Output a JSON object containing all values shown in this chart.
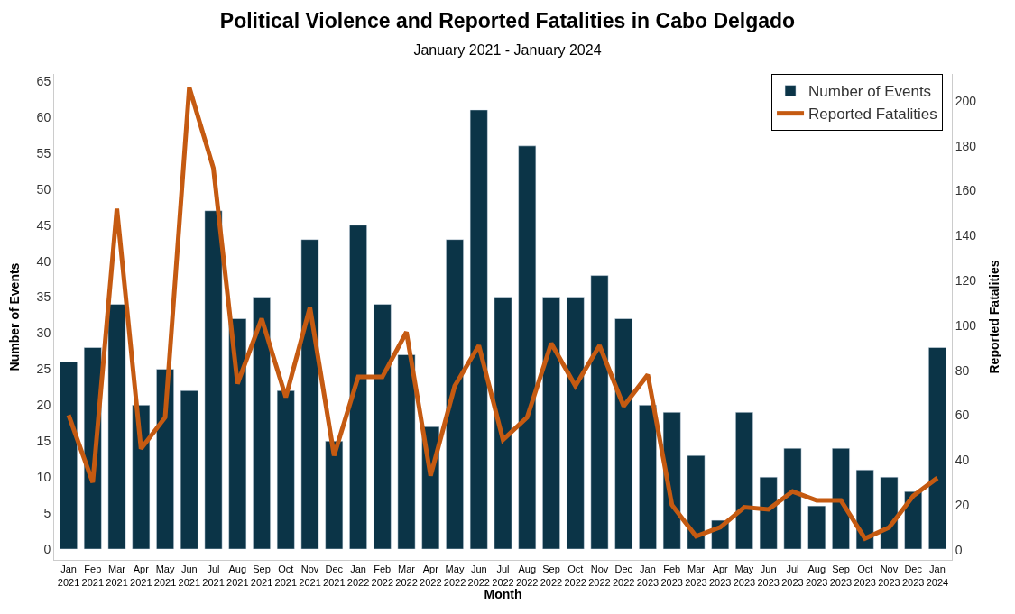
{
  "chart_data": {
    "type": "bar",
    "title": "Political Violence and Reported Fatalities in Cabo Delgado",
    "subtitle": "January 2021 - January 2024",
    "xlabel": "Month",
    "ylabel": "Number of Events",
    "y2label": "Reported Fatalities",
    "categories": [
      "Jan 2021",
      "Feb 2021",
      "Mar 2021",
      "Apr 2021",
      "May 2021",
      "Jun 2021",
      "Jul 2021",
      "Aug 2021",
      "Sep 2021",
      "Oct 2021",
      "Nov 2021",
      "Dec 2021",
      "Jan 2022",
      "Feb 2022",
      "Mar 2022",
      "Apr 2022",
      "May 2022",
      "Jun 2022",
      "Jul 2022",
      "Aug 2022",
      "Sep 2022",
      "Oct 2022",
      "Nov 2022",
      "Dec 2022",
      "Jan 2023",
      "Feb 2023",
      "Mar 2023",
      "Apr 2023",
      "May 2023",
      "Jun 2023",
      "Jul 2023",
      "Aug 2023",
      "Sep 2023",
      "Oct 2023",
      "Nov 2023",
      "Dec 2023",
      "Jan 2024"
    ],
    "series": [
      {
        "name": "Number of Events",
        "color": "#0b3447",
        "values": [
          26,
          28,
          34,
          20,
          25,
          22,
          47,
          32,
          35,
          22,
          43,
          15,
          45,
          34,
          27,
          17,
          43,
          61,
          35,
          56,
          35,
          35,
          38,
          32,
          20,
          19,
          13,
          4,
          19,
          10,
          14,
          6,
          14,
          11,
          10,
          8,
          28
        ]
      },
      {
        "name": "Reported Fatalities",
        "type": "line",
        "axis": "y2",
        "color": "#c55a11",
        "values": [
          60,
          30,
          152,
          45,
          59,
          206,
          170,
          74,
          103,
          68,
          108,
          42,
          77,
          77,
          97,
          33,
          73,
          91,
          49,
          59,
          92,
          73,
          91,
          64,
          78,
          20,
          6,
          10,
          19,
          18,
          26,
          22,
          22,
          5,
          10,
          24,
          32
        ]
      }
    ],
    "ylim": [
      -1.5,
      66
    ],
    "yticks": [
      0,
      5,
      10,
      15,
      20,
      25,
      30,
      35,
      40,
      45,
      50,
      55,
      60,
      65
    ],
    "y2lim": [
      -4.5,
      212
    ],
    "y2ticks": [
      0,
      20,
      40,
      60,
      80,
      100,
      120,
      140,
      160,
      180,
      200
    ],
    "grid": false,
    "legend": "top right",
    "marker": "none",
    "line_style": "solid"
  }
}
